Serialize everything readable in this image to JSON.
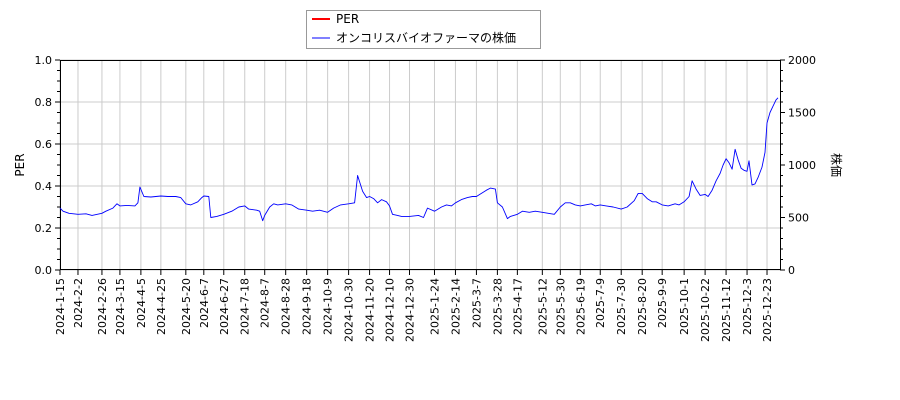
{
  "chart_data": {
    "type": "line",
    "title": "",
    "grid": true,
    "legend": {
      "placement": "top-center",
      "entries": [
        {
          "name": "PER",
          "color": "#ff0000"
        },
        {
          "name": "オンコリスバイオファーマの株価",
          "color": "#0000ff"
        }
      ]
    },
    "y_left": {
      "label": "PER",
      "range": [
        0,
        1.0
      ],
      "ticks": [
        "0.0",
        "0.2",
        "0.4",
        "0.6",
        "0.8",
        "1.0"
      ]
    },
    "y_right": {
      "label": "株価",
      "range": [
        0,
        2000
      ],
      "ticks": [
        "0",
        "500",
        "1000",
        "1500",
        "2000"
      ]
    },
    "x_axis": {
      "range": [
        "2024-01-15",
        "2026-01-05"
      ],
      "ticks": [
        "2024-1-15",
        "2024-2-2",
        "2024-2-26",
        "2024-3-15",
        "2024-4-5",
        "2024-4-25",
        "2024-5-20",
        "2024-6-7",
        "2024-6-27",
        "2024-7-18",
        "2024-8-7",
        "2024-8-28",
        "2024-9-18",
        "2024-10-9",
        "2024-10-30",
        "2024-11-20",
        "2024-12-10",
        "2024-12-30",
        "2025-1-24",
        "2025-2-14",
        "2025-3-7",
        "2025-3-28",
        "2025-4-17",
        "2025-5-12",
        "2025-5-30",
        "2025-6-19",
        "2025-7-9",
        "2025-7-30",
        "2025-8-20",
        "2025-9-9",
        "2025-10-1",
        "2025-10-22",
        "2025-11-12",
        "2025-12-3",
        "2025-12-23"
      ]
    },
    "series": [
      {
        "name": "PER",
        "axis": "left",
        "color": "#ff0000",
        "points": []
      },
      {
        "name": "オンコリスバイオファーマの株価",
        "axis": "right",
        "color": "#0000ff",
        "points": [
          [
            "2024-01-15",
            590
          ],
          [
            "2024-01-18",
            560
          ],
          [
            "2024-01-24",
            540
          ],
          [
            "2024-02-02",
            530
          ],
          [
            "2024-02-10",
            535
          ],
          [
            "2024-02-16",
            520
          ],
          [
            "2024-02-26",
            540
          ],
          [
            "2024-03-01",
            560
          ],
          [
            "2024-03-08",
            590
          ],
          [
            "2024-03-12",
            630
          ],
          [
            "2024-03-15",
            610
          ],
          [
            "2024-03-22",
            615
          ],
          [
            "2024-03-30",
            610
          ],
          [
            "2024-04-02",
            640
          ],
          [
            "2024-04-04",
            790
          ],
          [
            "2024-04-08",
            700
          ],
          [
            "2024-04-15",
            695
          ],
          [
            "2024-04-20",
            700
          ],
          [
            "2024-04-25",
            705
          ],
          [
            "2024-05-02",
            700
          ],
          [
            "2024-05-10",
            700
          ],
          [
            "2024-05-15",
            690
          ],
          [
            "2024-05-20",
            630
          ],
          [
            "2024-05-25",
            620
          ],
          [
            "2024-06-01",
            650
          ],
          [
            "2024-06-05",
            690
          ],
          [
            "2024-06-07",
            705
          ],
          [
            "2024-06-12",
            700
          ],
          [
            "2024-06-14",
            500
          ],
          [
            "2024-06-20",
            510
          ],
          [
            "2024-06-27",
            530
          ],
          [
            "2024-07-05",
            560
          ],
          [
            "2024-07-12",
            600
          ],
          [
            "2024-07-18",
            610
          ],
          [
            "2024-07-22",
            580
          ],
          [
            "2024-07-30",
            570
          ],
          [
            "2024-08-02",
            560
          ],
          [
            "2024-08-05",
            470
          ],
          [
            "2024-08-07",
            520
          ],
          [
            "2024-08-12",
            600
          ],
          [
            "2024-08-16",
            630
          ],
          [
            "2024-08-20",
            620
          ],
          [
            "2024-08-28",
            630
          ],
          [
            "2024-09-03",
            620
          ],
          [
            "2024-09-10",
            580
          ],
          [
            "2024-09-18",
            570
          ],
          [
            "2024-09-24",
            560
          ],
          [
            "2024-10-01",
            570
          ],
          [
            "2024-10-09",
            550
          ],
          [
            "2024-10-15",
            590
          ],
          [
            "2024-10-22",
            620
          ],
          [
            "2024-10-30",
            630
          ],
          [
            "2024-11-05",
            640
          ],
          [
            "2024-11-08",
            900
          ],
          [
            "2024-11-13",
            750
          ],
          [
            "2024-11-17",
            690
          ],
          [
            "2024-11-20",
            700
          ],
          [
            "2024-11-24",
            680
          ],
          [
            "2024-11-28",
            640
          ],
          [
            "2024-12-02",
            670
          ],
          [
            "2024-12-07",
            650
          ],
          [
            "2024-12-10",
            610
          ],
          [
            "2024-12-13",
            530
          ],
          [
            "2024-12-18",
            520
          ],
          [
            "2024-12-22",
            510
          ],
          [
            "2024-12-30",
            510
          ],
          [
            "2025-01-08",
            520
          ],
          [
            "2025-01-13",
            500
          ],
          [
            "2025-01-17",
            590
          ],
          [
            "2025-01-24",
            560
          ],
          [
            "2025-01-31",
            600
          ],
          [
            "2025-02-05",
            620
          ],
          [
            "2025-02-10",
            610
          ],
          [
            "2025-02-14",
            640
          ],
          [
            "2025-02-20",
            670
          ],
          [
            "2025-02-26",
            690
          ],
          [
            "2025-03-03",
            700
          ],
          [
            "2025-03-07",
            700
          ],
          [
            "2025-03-12",
            730
          ],
          [
            "2025-03-17",
            760
          ],
          [
            "2025-03-21",
            780
          ],
          [
            "2025-03-26",
            770
          ],
          [
            "2025-03-28",
            640
          ],
          [
            "2025-04-02",
            600
          ],
          [
            "2025-04-07",
            490
          ],
          [
            "2025-04-10",
            510
          ],
          [
            "2025-04-17",
            530
          ],
          [
            "2025-04-22",
            560
          ],
          [
            "2025-04-29",
            550
          ],
          [
            "2025-05-05",
            560
          ],
          [
            "2025-05-12",
            550
          ],
          [
            "2025-05-18",
            540
          ],
          [
            "2025-05-24",
            530
          ],
          [
            "2025-05-30",
            600
          ],
          [
            "2025-06-04",
            640
          ],
          [
            "2025-06-09",
            640
          ],
          [
            "2025-06-14",
            620
          ],
          [
            "2025-06-19",
            610
          ],
          [
            "2025-06-24",
            620
          ],
          [
            "2025-06-30",
            630
          ],
          [
            "2025-07-04",
            610
          ],
          [
            "2025-07-09",
            620
          ],
          [
            "2025-07-15",
            610
          ],
          [
            "2025-07-22",
            600
          ],
          [
            "2025-07-30",
            580
          ],
          [
            "2025-08-05",
            600
          ],
          [
            "2025-08-12",
            660
          ],
          [
            "2025-08-16",
            730
          ],
          [
            "2025-08-20",
            730
          ],
          [
            "2025-08-25",
            680
          ],
          [
            "2025-08-30",
            650
          ],
          [
            "2025-09-03",
            650
          ],
          [
            "2025-09-09",
            620
          ],
          [
            "2025-09-15",
            610
          ],
          [
            "2025-09-22",
            630
          ],
          [
            "2025-09-26",
            620
          ],
          [
            "2025-10-01",
            650
          ],
          [
            "2025-10-06",
            700
          ],
          [
            "2025-10-09",
            850
          ],
          [
            "2025-10-13",
            770
          ],
          [
            "2025-10-17",
            710
          ],
          [
            "2025-10-22",
            720
          ],
          [
            "2025-10-25",
            700
          ],
          [
            "2025-10-29",
            760
          ],
          [
            "2025-11-02",
            850
          ],
          [
            "2025-11-06",
            920
          ],
          [
            "2025-11-09",
            1000
          ],
          [
            "2025-11-12",
            1060
          ],
          [
            "2025-11-15",
            1020
          ],
          [
            "2025-11-18",
            960
          ],
          [
            "2025-11-21",
            1150
          ],
          [
            "2025-11-24",
            1050
          ],
          [
            "2025-11-27",
            970
          ],
          [
            "2025-11-30",
            950
          ],
          [
            "2025-12-03",
            940
          ],
          [
            "2025-12-05",
            1040
          ],
          [
            "2025-12-08",
            810
          ],
          [
            "2025-12-11",
            820
          ],
          [
            "2025-12-14",
            880
          ],
          [
            "2025-12-18",
            980
          ],
          [
            "2025-12-21",
            1120
          ],
          [
            "2025-12-23",
            1400
          ],
          [
            "2025-12-26",
            1500
          ],
          [
            "2025-12-29",
            1560
          ],
          [
            "2026-01-01",
            1620
          ],
          [
            "2026-01-03",
            1640
          ]
        ]
      }
    ]
  }
}
